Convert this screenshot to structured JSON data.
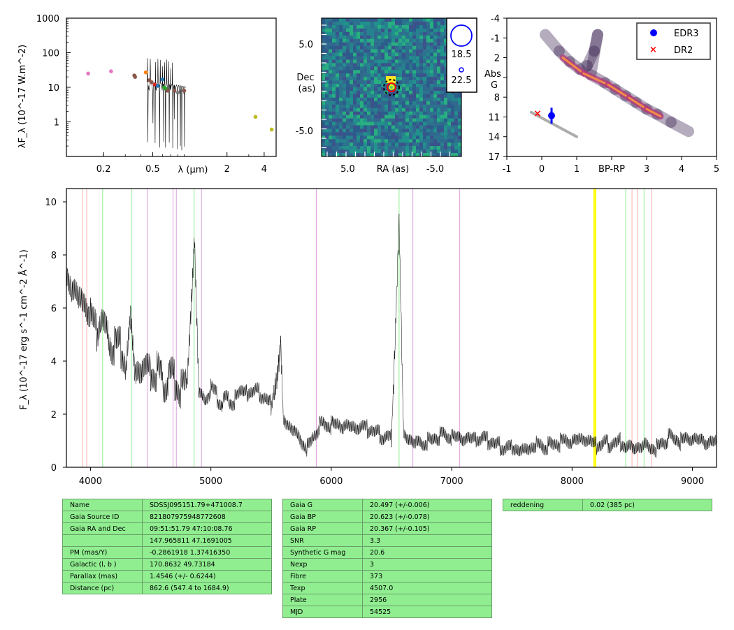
{
  "chart_data": [
    {
      "type": "scatter",
      "name": "SED",
      "xlabel": "λ (μm)",
      "ylabel": "λF_λ (10^-17 W.m^-2)",
      "xscale": "log",
      "yscale": "log",
      "xlim": [
        0.1,
        5
      ],
      "ylim": [
        0.1,
        1000
      ],
      "x_ticks": [
        "0.2",
        "0.5",
        "2",
        "4"
      ],
      "y_ticks": [
        "1",
        "10",
        "100",
        "1000"
      ],
      "x_tick_values": [
        0.2,
        0.5,
        2,
        4
      ],
      "y_tick_values": [
        1,
        10,
        100,
        1000
      ],
      "points": [
        {
          "x": 0.15,
          "y": 25,
          "color": "#e377c2"
        },
        {
          "x": 0.23,
          "y": 29,
          "color": "#e377c2"
        },
        {
          "x": 0.355,
          "y": 22,
          "color": "#8c564b"
        },
        {
          "x": 0.36,
          "y": 20,
          "color": "#8c564b"
        },
        {
          "x": 0.44,
          "y": 27,
          "color": "#ff7f0e"
        },
        {
          "x": 0.47,
          "y": 16,
          "color": "#8c564b"
        },
        {
          "x": 0.49,
          "y": 14,
          "color": "#8c564b"
        },
        {
          "x": 0.52,
          "y": 12,
          "color": "#d62728"
        },
        {
          "x": 0.55,
          "y": 11,
          "color": "#1f77b4"
        },
        {
          "x": 0.6,
          "y": 17,
          "color": "#1f77b4"
        },
        {
          "x": 0.62,
          "y": 10,
          "color": "#2ca02c"
        },
        {
          "x": 0.64,
          "y": 9,
          "color": "#2ca02c"
        },
        {
          "x": 0.66,
          "y": 8,
          "color": "#8c564b"
        },
        {
          "x": 0.75,
          "y": 8,
          "color": "#8c564b"
        },
        {
          "x": 0.8,
          "y": 7,
          "color": "#7f7f7f"
        },
        {
          "x": 0.9,
          "y": 8,
          "color": "#8c564b"
        },
        {
          "x": 3.4,
          "y": 1.4,
          "color": "#bcbd22"
        },
        {
          "x": 4.6,
          "y": 0.6,
          "color": "#bcbd22"
        }
      ]
    },
    {
      "type": "heatmap",
      "name": "Image cutout",
      "xlabel": "RA (as)",
      "ylabel": "Dec\n(as)",
      "x_ticks": [
        "5.0",
        "-5.0"
      ],
      "y_ticks": [
        "5.0",
        "-5.0"
      ],
      "x_tick_values": [
        5,
        -5
      ],
      "y_tick_values": [
        5,
        -5
      ],
      "xlim": [
        8,
        -8
      ],
      "ylim": [
        -8,
        8
      ],
      "legend_marks": [
        "18.5",
        "22.5"
      ]
    },
    {
      "type": "scatter",
      "name": "HR diagram",
      "xlabel": "BP-RP",
      "ylabel": "Abs\nG",
      "xlim": [
        -1,
        5
      ],
      "ylim": [
        17,
        -4
      ],
      "x_ticks": [
        "-1",
        "0",
        "1",
        "2",
        "3",
        "4",
        "5"
      ],
      "y_ticks": [
        "-4",
        "-1",
        "2",
        "5",
        "8",
        "11",
        "14",
        "17"
      ],
      "legend": [
        "EDR3",
        "DR2"
      ],
      "legend_position": "top-right",
      "series": [
        {
          "name": "EDR3",
          "x": [
            0.28
          ],
          "y": [
            10.8
          ],
          "yerr": [
            1.2
          ],
          "color": "#0000ff",
          "marker": "circle"
        },
        {
          "name": "DR2",
          "x": [
            -0.12
          ],
          "y": [
            10.4
          ],
          "color": "#ff0000",
          "marker": "x"
        }
      ]
    },
    {
      "type": "line",
      "name": "Spectrum",
      "xlabel": "",
      "ylabel": "F_λ (10^-17 erg s^-1 cm^-2 Å^-1)",
      "xlim": [
        3800,
        9200
      ],
      "ylim": [
        0,
        10.5
      ],
      "x_ticks": [
        "4000",
        "5000",
        "6000",
        "7000",
        "8000",
        "9000"
      ],
      "y_ticks": [
        "0",
        "2",
        "4",
        "6",
        "8",
        "10"
      ],
      "x_tick_values": [
        4000,
        5000,
        6000,
        7000,
        8000,
        9000
      ],
      "y_tick_values": [
        0,
        2,
        4,
        6,
        8,
        10
      ],
      "series_points": [
        [
          3800,
          7.5
        ],
        [
          3850,
          6.8
        ],
        [
          3900,
          6.2
        ],
        [
          3950,
          6.4
        ],
        [
          4000,
          5.6
        ],
        [
          4050,
          5.2
        ],
        [
          4101,
          6.0
        ],
        [
          4150,
          5.0
        ],
        [
          4200,
          4.6
        ],
        [
          4250,
          4.4
        ],
        [
          4300,
          4.0
        ],
        [
          4340,
          5.8
        ],
        [
          4370,
          3.9
        ],
        [
          4400,
          3.8
        ],
        [
          4450,
          3.6
        ],
        [
          4500,
          3.7
        ],
        [
          4550,
          3.5
        ],
        [
          4600,
          3.3
        ],
        [
          4650,
          3.4
        ],
        [
          4700,
          3.2
        ],
        [
          4750,
          3.1
        ],
        [
          4800,
          3.0
        ],
        [
          4861,
          8.5
        ],
        [
          4900,
          2.7
        ],
        [
          4950,
          2.6
        ],
        [
          5000,
          2.9
        ],
        [
          5050,
          2.7
        ],
        [
          5100,
          2.4
        ],
        [
          5150,
          2.5
        ],
        [
          5200,
          2.6
        ],
        [
          5300,
          2.7
        ],
        [
          5400,
          2.8
        ],
        [
          5500,
          2.4
        ],
        [
          5577,
          4.5
        ],
        [
          5600,
          2.0
        ],
        [
          5700,
          1.5
        ],
        [
          5800,
          0.8
        ],
        [
          5900,
          1.6
        ],
        [
          6000,
          1.5
        ],
        [
          6100,
          1.4
        ],
        [
          6200,
          1.3
        ],
        [
          6300,
          1.4
        ],
        [
          6400,
          1.2
        ],
        [
          6500,
          1.2
        ],
        [
          6563,
          9.6
        ],
        [
          6600,
          1.4
        ],
        [
          6700,
          1.1
        ],
        [
          6800,
          1.0
        ],
        [
          6900,
          1.2
        ],
        [
          7000,
          1.0
        ],
        [
          7100,
          0.9
        ],
        [
          7200,
          0.9
        ],
        [
          7300,
          1.0
        ],
        [
          7400,
          0.8
        ],
        [
          7500,
          0.9
        ],
        [
          7600,
          0.8
        ],
        [
          7700,
          1.0
        ],
        [
          7800,
          0.8
        ],
        [
          7900,
          0.9
        ],
        [
          8000,
          0.8
        ],
        [
          8100,
          0.9
        ],
        [
          8200,
          0.7
        ],
        [
          8300,
          0.9
        ],
        [
          8400,
          1.0
        ],
        [
          8500,
          0.9
        ],
        [
          8600,
          1.0
        ],
        [
          8700,
          0.8
        ],
        [
          8800,
          1.1
        ],
        [
          8900,
          0.9
        ],
        [
          9000,
          0.9
        ],
        [
          9100,
          0.8
        ],
        [
          9200,
          0.8
        ]
      ],
      "line_markers": [
        {
          "x": 3934,
          "color": "#ffb0b0"
        },
        {
          "x": 3969,
          "color": "#ffb0b0"
        },
        {
          "x": 4101,
          "color": "#90ee90"
        },
        {
          "x": 4340,
          "color": "#90ee90"
        },
        {
          "x": 4471,
          "color": "#dda0dd"
        },
        {
          "x": 4686,
          "color": "#dda0dd"
        },
        {
          "x": 4713,
          "color": "#dda0dd"
        },
        {
          "x": 4861,
          "color": "#90ee90"
        },
        {
          "x": 4922,
          "color": "#dda0dd"
        },
        {
          "x": 5876,
          "color": "#dda0dd"
        },
        {
          "x": 6563,
          "color": "#90ee90"
        },
        {
          "x": 6678,
          "color": "#dda0dd"
        },
        {
          "x": 7065,
          "color": "#dda0dd"
        },
        {
          "x": 8183,
          "color": "#ffff00"
        },
        {
          "x": 8195,
          "color": "#ffff00"
        },
        {
          "x": 8446,
          "color": "#90ee90"
        },
        {
          "x": 8498,
          "color": "#ffb0b0"
        },
        {
          "x": 8542,
          "color": "#ffb0b0"
        },
        {
          "x": 8598,
          "color": "#90ee90"
        },
        {
          "x": 8662,
          "color": "#ffb0b0"
        }
      ]
    }
  ],
  "tables": {
    "left": [
      [
        "Name",
        "SDSSJ095151.79+471008.7"
      ],
      [
        "Gaia Source ID",
        "821807975948772608"
      ],
      [
        "Gaia RA and Dec",
        "09:51:51.79    47:10:08.76"
      ],
      [
        "",
        "147.965811    47.1691005"
      ],
      [
        "PM (mas/Y)",
        "-0.2861918    1.37416350"
      ],
      [
        "Galactic (l, b )",
        "170.8632    49.73184"
      ],
      [
        "Parallax (mas)",
        "1.4546 (+/- 0.6244)"
      ],
      [
        "Distance (pc)",
        "862.6 (547.4 to 1684.9)"
      ]
    ],
    "middle": [
      [
        "Gaia G",
        "20.497 (+/-0.006)"
      ],
      [
        "Gaia BP",
        "20.623 (+/-0.078)"
      ],
      [
        "Gaia RP",
        "20.367 (+/-0.105)"
      ],
      [
        "SNR",
        "3.3"
      ],
      [
        "Synthetic G mag",
        "20.6"
      ],
      [
        "Nexp",
        "3"
      ],
      [
        "Fibre",
        "373"
      ],
      [
        "Texp",
        "4507.0"
      ],
      [
        "Plate",
        "2956"
      ],
      [
        "MJD",
        "54525"
      ]
    ],
    "right": [
      [
        "reddening",
        "0.02 (385 pc)"
      ]
    ]
  }
}
